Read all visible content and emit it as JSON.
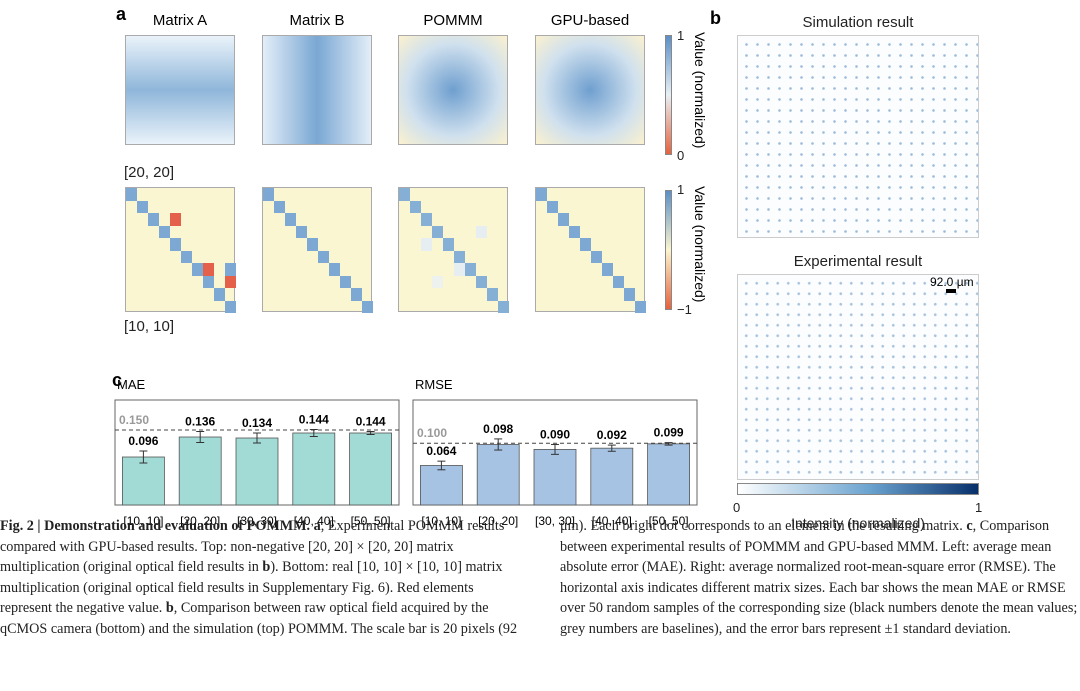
{
  "panel_a": {
    "label": "a",
    "columns": [
      "Matrix A",
      "Matrix B",
      "POMMM",
      "GPU-based"
    ],
    "rows": [
      "[20, 20]",
      "[10, 10]"
    ],
    "colorbar_top": [
      "1",
      "0"
    ],
    "colorbar_bottom": [
      "1",
      "−1"
    ],
    "colorbar_title": "Value (normalized)"
  },
  "panel_b": {
    "label": "b",
    "top_title": "Simulation result",
    "bottom_title": "Experimental result",
    "scale_bar": "92.0 µm",
    "colorbar": [
      "0",
      "1"
    ],
    "colorbar_title": "Intensity (normalized)"
  },
  "panel_c": {
    "label": "c"
  },
  "chart_data": [
    {
      "type": "bar",
      "title": "MAE",
      "categories": [
        "[10, 10]",
        "[20, 20]",
        "[30, 30]",
        "[40, 40]",
        "[50, 50]"
      ],
      "values": [
        0.096,
        0.136,
        0.134,
        0.144,
        0.144
      ],
      "errors": [
        0.012,
        0.011,
        0.01,
        0.007,
        0.003
      ],
      "baseline": {
        "value": 0.15,
        "label": "0.150"
      },
      "color": "#a2dad6",
      "ylim": [
        0,
        0.21
      ]
    },
    {
      "type": "bar",
      "title": "RMSE",
      "categories": [
        "[10, 10]",
        "[20, 20]",
        "[30, 30]",
        "[40, 40]",
        "[50, 50]"
      ],
      "values": [
        0.064,
        0.098,
        0.09,
        0.092,
        0.099
      ],
      "value_labels": [
        "0.064",
        "0.098",
        "0.090",
        "0.092",
        "0.099"
      ],
      "errors": [
        0.007,
        0.009,
        0.008,
        0.005,
        0.002
      ],
      "baseline": {
        "value": 0.1,
        "label": "0.100"
      },
      "color": "#a6c3e3",
      "ylim": [
        0,
        0.17
      ]
    }
  ],
  "caption": {
    "runs": [
      {
        "text": "Fig. 2 | Demonstration and evaluation of POMMM.",
        "bold": true
      },
      {
        "text": " ",
        "bold": false
      },
      {
        "text": "a",
        "bold": true
      },
      {
        "text": ", Experimental POMMM results compared with GPU-based results. Top: non-negative [20, 20] × [20, 20] matrix multiplication (original optical field results in ",
        "bold": false
      },
      {
        "text": "b",
        "bold": true
      },
      {
        "text": "). Bottom: real [10, 10] × [10, 10] matrix multiplication (original optical field results in Supplementary Fig. 6). Red elements represent the negative value. ",
        "bold": false
      },
      {
        "text": "b",
        "bold": true
      },
      {
        "text": ", Comparison between raw optical field acquired by the qCMOS camera (bottom) and the simulation (top) POMMM. The scale bar is 20 pixels (92 μm). Each bright dot corresponds to an element in the resulting matrix. ",
        "bold": false
      },
      {
        "text": "c",
        "bold": true
      },
      {
        "text": ", Comparison between experimental results of POMMM and GPU-based MMM. Left: average mean absolute error (MAE). Right: average normalized root-mean-square error (RMSE). The horizontal axis indicates different matrix sizes. Each bar shows the mean MAE or RMSE over 50 random samples of the corresponding size (black numbers denote the mean values; grey numbers are baselines), and the error bars represent ±1 standard deviation.",
        "bold": false
      }
    ]
  }
}
